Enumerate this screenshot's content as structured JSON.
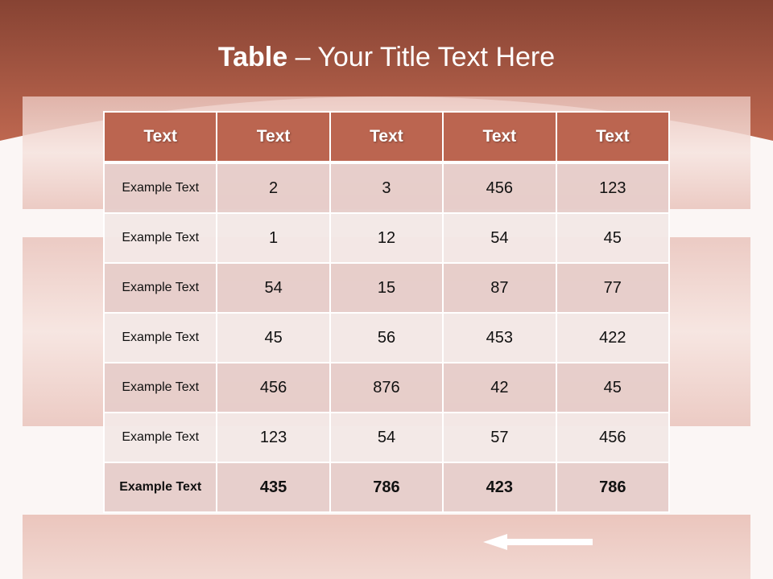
{
  "slide": {
    "title_bold": "Table",
    "title_rest": " – Your Title Text Here",
    "colors": {
      "header": "#bb6550",
      "band_top": "#874333",
      "row_odd": "#e6cdca",
      "row_even": "#f3e8e6"
    }
  },
  "table": {
    "headers": [
      "Text",
      "Text",
      "Text",
      "Text",
      "Text"
    ],
    "rows": [
      [
        "Example Text",
        "2",
        "3",
        "456",
        "123"
      ],
      [
        "Example Text",
        "1",
        "12",
        "54",
        "45"
      ],
      [
        "Example Text",
        "54",
        "15",
        "87",
        "77"
      ],
      [
        "Example Text",
        "45",
        "56",
        "453",
        "422"
      ],
      [
        "Example Text",
        "456",
        "876",
        "42",
        "45"
      ],
      [
        "Example Text",
        "123",
        "54",
        "57",
        "456"
      ],
      [
        "Example Text",
        "435",
        "786",
        "423",
        "786"
      ]
    ]
  }
}
